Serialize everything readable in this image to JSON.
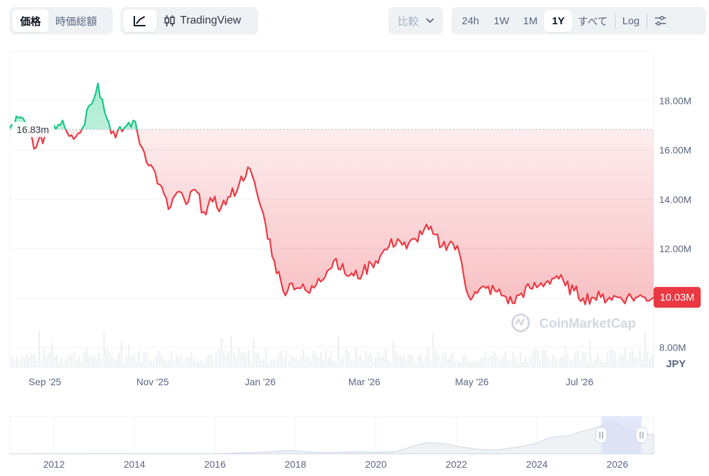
{
  "toolbar": {
    "view_tabs": [
      {
        "label": "価格",
        "active": true
      },
      {
        "label": "時価総額",
        "active": false
      }
    ],
    "chart_type": {
      "line_icon": "line-chart-icon",
      "tradingview_icon": "candlestick-icon",
      "tradingview_label": "TradingView"
    },
    "compare": {
      "label": "比較",
      "icon": "chevron-down-icon"
    },
    "ranges": [
      {
        "label": "24h",
        "active": false
      },
      {
        "label": "1W",
        "active": false
      },
      {
        "label": "1M",
        "active": false
      },
      {
        "label": "1Y",
        "active": true
      },
      {
        "label": "すべて",
        "active": false
      }
    ],
    "log_label": "Log",
    "settings_icon": "sliders-icon"
  },
  "colors": {
    "up": "#16c784",
    "down": "#ea3943",
    "grid": "#eff2f5",
    "axis_text": "#58667e"
  },
  "watermark": "CoinMarketCap",
  "chart_data": {
    "type": "area",
    "currency": "JPY",
    "baseline_label": "16.83m",
    "baseline_value": 16.83,
    "current_price_label": "10.03M",
    "y_tick_labels": [
      "8.00M",
      "10.00M",
      "12.00M",
      "14.00M",
      "16.00M",
      "18.00M"
    ],
    "y_tick_values": [
      8,
      10,
      12,
      14,
      16,
      18
    ],
    "x_tick_labels": [
      "Sep '25",
      "Nov '25",
      "Jan '26",
      "Mar '26",
      "May '26",
      "Jul '26"
    ],
    "x_tick_days": [
      20,
      81,
      142,
      201,
      262,
      323
    ],
    "ylim": [
      7.2,
      20.0
    ],
    "xlim_days": [
      0,
      365
    ],
    "price_series_days": [
      0,
      5,
      10,
      15,
      20,
      25,
      30,
      35,
      40,
      45,
      50,
      55,
      60,
      65,
      70,
      75,
      80,
      85,
      90,
      95,
      100,
      105,
      110,
      115,
      120,
      125,
      130,
      135,
      140,
      145,
      150,
      155,
      160,
      165,
      170,
      175,
      180,
      185,
      190,
      195,
      200,
      205,
      210,
      215,
      220,
      225,
      230,
      235,
      240,
      245,
      250,
      255,
      260,
      265,
      270,
      275,
      280,
      285,
      290,
      295,
      300,
      305,
      310,
      315,
      320,
      325,
      330,
      335,
      340,
      345,
      350,
      355,
      360,
      365
    ],
    "price_series_values": [
      16.9,
      17.3,
      16.9,
      16.1,
      16.6,
      17.0,
      17.2,
      16.6,
      16.7,
      17.8,
      18.7,
      17.3,
      16.5,
      16.9,
      17.2,
      16.1,
      15.4,
      14.6,
      13.6,
      14.3,
      13.8,
      14.4,
      13.5,
      13.9,
      13.7,
      14.1,
      14.6,
      15.3,
      14.3,
      13.0,
      11.5,
      10.3,
      10.6,
      10.4,
      10.2,
      10.8,
      11.1,
      11.6,
      11.0,
      10.9,
      11.0,
      11.4,
      11.7,
      12.1,
      12.4,
      12.0,
      12.4,
      12.8,
      12.6,
      12.1,
      12.3,
      11.8,
      10.1,
      10.2,
      10.4,
      10.3,
      10.1,
      9.8,
      10.2,
      10.4,
      10.5,
      10.7,
      10.9,
      10.5,
      10.3,
      10.0,
      10.03,
      10.03,
      10.03,
      10.03,
      10.03,
      10.03,
      10.03,
      10.03
    ],
    "volume_note": "",
    "overview": {
      "x_tick_labels": [
        "2012",
        "2014",
        "2016",
        "2018",
        "2020",
        "2022",
        "2024",
        "2026"
      ],
      "x_tick_years": [
        2012,
        2014,
        2016,
        2018,
        2020,
        2022,
        2024,
        2026
      ],
      "xlim_years": [
        2010.9,
        2026.9
      ],
      "series_years": [
        2010.9,
        2012,
        2013,
        2014,
        2015,
        2016,
        2017,
        2017.9,
        2018.5,
        2019,
        2019.5,
        2020,
        2020.5,
        2021,
        2021.3,
        2021.8,
        2022,
        2022.5,
        2023,
        2023.5,
        2024,
        2024.3,
        2024.8,
        2025,
        2025.5,
        2025.9,
        2026.3,
        2026.9
      ],
      "series_values": [
        0.01,
        0.02,
        0.1,
        0.06,
        0.04,
        0.07,
        0.6,
        1.8,
        0.8,
        0.7,
        1.1,
        0.8,
        1.2,
        4.5,
        6.0,
        5.0,
        4.0,
        2.5,
        2.0,
        3.5,
        5.5,
        8.5,
        9.5,
        11.0,
        14.0,
        17.0,
        12.0,
        10.0
      ],
      "selection_range_years": [
        2025.6,
        2026.6
      ]
    }
  }
}
